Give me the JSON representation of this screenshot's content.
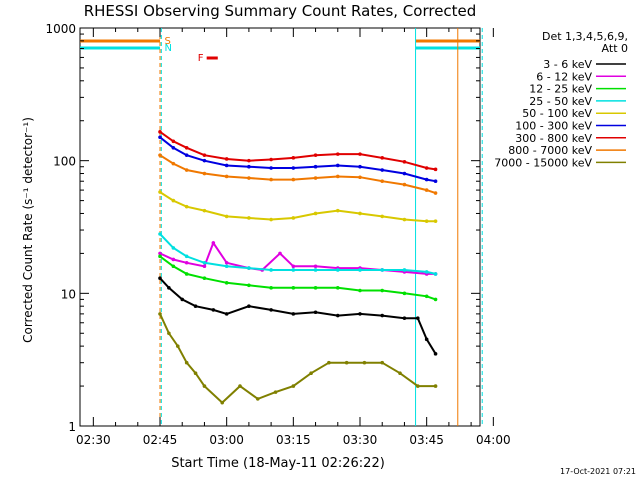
{
  "chart_data": {
    "type": "line",
    "title": "RHESSI Observing Summary Count Rates, Corrected",
    "xlabel": "Start Time (18-May-11 02:26:22)",
    "ylabel": "Corrected Count Rate (s⁻¹ detector⁻¹)",
    "yscale": "log",
    "ylim": [
      1,
      1000
    ],
    "xlim_minutes": [
      -18,
      72
    ],
    "x_units": "minutes after 02:45 UT",
    "x_tick_labels": [
      "02:30",
      "02:45",
      "03:00",
      "03:15",
      "03:30",
      "03:45",
      "04:00"
    ],
    "x_tick_values": [
      -15,
      0,
      15,
      30,
      45,
      60,
      75
    ],
    "y_tick_labels": [
      "1",
      "10",
      "100",
      "1000"
    ],
    "y_tick_values": [
      1,
      10,
      100,
      1000
    ],
    "legend_header": [
      "Det 1,3,4,5,6,9,",
      "Att 0"
    ],
    "legend_placement": "right, outside plot",
    "timestamp": "17-Oct-2021 07:21",
    "flags": [
      {
        "label": "S",
        "color": "#f07800"
      },
      {
        "label": "N",
        "color": "#00e0e0"
      },
      {
        "label": "F",
        "color": "#e00000"
      }
    ],
    "series": [
      {
        "name": "3 - 6 keV",
        "color": "#000000",
        "x": [
          0,
          2,
          5,
          8,
          12,
          15,
          20,
          25,
          30,
          35,
          40,
          45,
          50,
          55,
          58,
          60,
          62
        ],
        "values": [
          13,
          11,
          9,
          8,
          7.5,
          7,
          8,
          7.5,
          7,
          7.2,
          6.8,
          7,
          6.8,
          6.5,
          6.5,
          4.5,
          3.5
        ]
      },
      {
        "name": "6 - 12 keV",
        "color": "#e000e0",
        "x": [
          0,
          3,
          6,
          10,
          12,
          15,
          20,
          23,
          27,
          30,
          35,
          40,
          45,
          50,
          55,
          60,
          62
        ],
        "values": [
          20,
          18,
          17,
          16,
          24,
          17,
          15.5,
          15,
          20,
          16,
          16,
          15.5,
          15.5,
          15,
          14.5,
          14,
          14
        ]
      },
      {
        "name": "12 - 25 keV",
        "color": "#00e000",
        "x": [
          0,
          3,
          6,
          10,
          15,
          20,
          25,
          30,
          35,
          40,
          45,
          50,
          55,
          60,
          62
        ],
        "values": [
          19,
          16,
          14,
          13,
          12,
          11.5,
          11,
          11,
          11,
          11,
          10.5,
          10.5,
          10,
          9.5,
          9
        ]
      },
      {
        "name": "25 - 50 keV",
        "color": "#00e0e0",
        "x": [
          0,
          3,
          6,
          10,
          15,
          20,
          25,
          30,
          35,
          40,
          45,
          50,
          55,
          60,
          62
        ],
        "values": [
          28,
          22,
          19,
          17,
          16,
          15.5,
          15,
          15,
          15,
          15,
          15,
          15,
          15,
          14.5,
          14
        ]
      },
      {
        "name": "50 - 100 keV",
        "color": "#d8c800",
        "x": [
          0,
          3,
          6,
          10,
          15,
          20,
          25,
          30,
          35,
          40,
          45,
          50,
          55,
          60,
          62
        ],
        "values": [
          58,
          50,
          45,
          42,
          38,
          37,
          36,
          37,
          40,
          42,
          40,
          38,
          36,
          35,
          35
        ]
      },
      {
        "name": "100 - 300 keV",
        "color": "#0000e0",
        "x": [
          0,
          3,
          6,
          10,
          15,
          20,
          25,
          30,
          35,
          40,
          45,
          50,
          55,
          60,
          62
        ],
        "values": [
          150,
          125,
          110,
          100,
          92,
          90,
          88,
          88,
          90,
          92,
          90,
          85,
          80,
          72,
          70
        ]
      },
      {
        "name": "300 - 800 keV",
        "color": "#e00000",
        "x": [
          0,
          3,
          6,
          10,
          15,
          20,
          25,
          30,
          35,
          40,
          45,
          50,
          55,
          60,
          62
        ],
        "values": [
          165,
          140,
          125,
          110,
          103,
          100,
          102,
          105,
          110,
          112,
          112,
          105,
          98,
          88,
          86
        ]
      },
      {
        "name": "800 - 7000 keV",
        "color": "#f07800",
        "x": [
          0,
          3,
          6,
          10,
          15,
          20,
          25,
          30,
          35,
          40,
          45,
          50,
          55,
          60,
          62
        ],
        "values": [
          110,
          95,
          85,
          80,
          76,
          74,
          72,
          72,
          74,
          76,
          75,
          70,
          66,
          60,
          57
        ]
      },
      {
        "name": "7000 - 15000 keV",
        "color": "#808000",
        "x": [
          0,
          2,
          4,
          6,
          8,
          10,
          14,
          18,
          22,
          26,
          30,
          34,
          38,
          42,
          46,
          50,
          54,
          58,
          62
        ],
        "values": [
          7,
          5,
          4,
          3,
          2.5,
          2,
          1.5,
          2,
          1.6,
          1.8,
          2,
          2.5,
          3,
          3,
          3,
          3,
          2.5,
          2,
          2
        ]
      }
    ]
  }
}
